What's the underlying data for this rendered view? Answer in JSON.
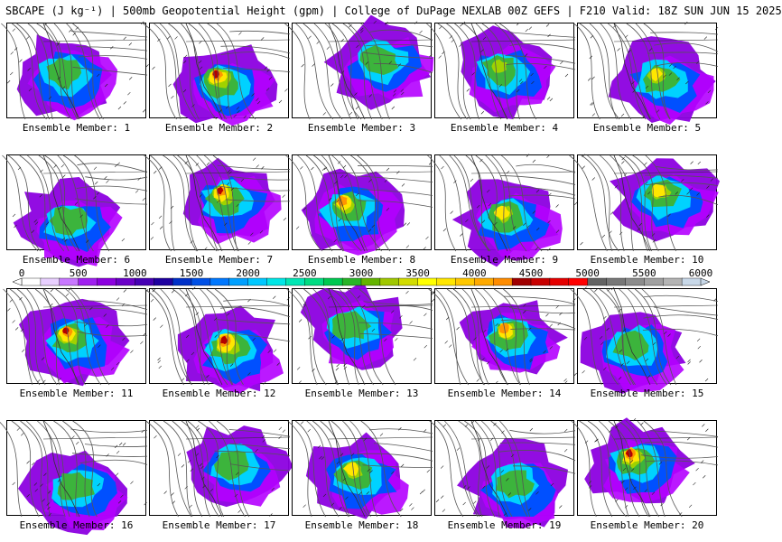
{
  "title": "SBCAPE (J kg⁻¹) | 500mb Geopotential Height (gpm) | College of DuPage NEXLAB 00Z GEFS | F210 Valid: 18Z SUN JUN 15 2025",
  "member_prefix": "Ensemble Member:",
  "members": [
    "1",
    "2",
    "3",
    "4",
    "5",
    "6",
    "7",
    "8",
    "9",
    "10",
    "11",
    "12",
    "13",
    "14",
    "15",
    "16",
    "17",
    "18",
    "19",
    "20"
  ],
  "colorbar": {
    "ticks": [
      "0",
      "500",
      "1000",
      "1500",
      "2000",
      "2500",
      "3000",
      "3500",
      "4000",
      "4500",
      "5000",
      "5500",
      "6000"
    ],
    "colors": [
      "#ffffff",
      "#e8d0ff",
      "#c878ff",
      "#a020f0",
      "#8c00e0",
      "#6a00c8",
      "#4600b4",
      "#1e00a0",
      "#0030c8",
      "#0050e6",
      "#0078ff",
      "#00a0ff",
      "#00c8ff",
      "#00e6e6",
      "#00e6b4",
      "#00dc82",
      "#00c850",
      "#28b428",
      "#64b400",
      "#a0c800",
      "#d2dc00",
      "#ffff00",
      "#ffe600",
      "#ffc800",
      "#ffaa00",
      "#ff8c00",
      "#a00000",
      "#c80000",
      "#e60000",
      "#ff0000",
      "#646464",
      "#787878",
      "#8c8c8c",
      "#a0a0a0",
      "#b4b4b4",
      "#c8d8e8"
    ]
  },
  "cape_colors": {
    "low": "#8c00e0",
    "low2": "#b400ff",
    "mid": "#0050ff",
    "mid2": "#00d2ff",
    "green": "#3cb43c",
    "lime": "#a0d200",
    "yellow": "#ffe600",
    "orange": "#ff9600",
    "red": "#b40000"
  },
  "intensity": [
    0.45,
    0.85,
    0.5,
    0.6,
    0.7,
    0.55,
    0.85,
    0.8,
    0.75,
    0.7,
    0.85,
    0.95,
    0.5,
    0.8,
    0.45,
    0.5,
    0.5,
    0.75,
    0.55,
    0.9
  ]
}
